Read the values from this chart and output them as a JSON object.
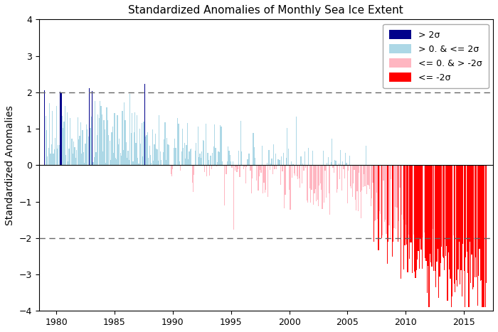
{
  "title": "Standardized Anomalies of Monthly Sea Ice Extent",
  "ylabel": "Standardized Anomalies",
  "xlim": [
    1978.5,
    2017.5
  ],
  "ylim": [
    -4,
    4
  ],
  "yticks": [
    -4,
    -3,
    -2,
    -1,
    0,
    1,
    2,
    3,
    4
  ],
  "xticks": [
    1980,
    1985,
    1990,
    1995,
    2000,
    2005,
    2010,
    2015
  ],
  "hline_color": "#666666",
  "hline_lw": 1.0,
  "zero_line_color": "#000000",
  "color_pos_low": "#ADD8E6",
  "color_pos_high": "#00008B",
  "color_neg_low": "#FFB6C1",
  "color_neg_high": "#FF0000",
  "legend_labels": [
    "> 2σ",
    "> 0. & <= 2σ",
    "<= 0. & > -2σ",
    "<= -2σ"
  ],
  "legend_colors": [
    "#00008B",
    "#ADD8E6",
    "#FFB6C1",
    "#FF0000"
  ],
  "figsize": [
    7.0,
    4.67
  ],
  "dpi": 100
}
